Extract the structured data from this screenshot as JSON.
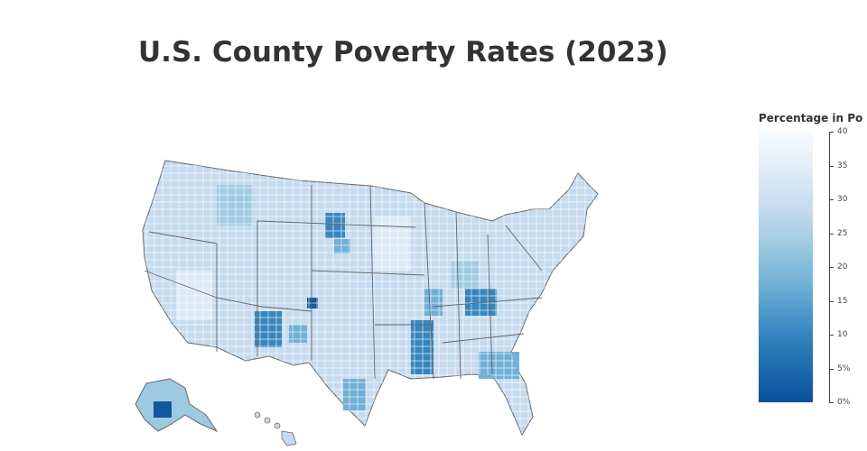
{
  "title": "U.S. County Poverty Rates (2023)",
  "colorbar": {
    "title": "Percentage in Po",
    "ticks": [
      "40",
      "35",
      "30",
      "25",
      "20",
      "15",
      "10",
      "5%",
      "0%"
    ],
    "colors": [
      "#f7fbff",
      "#deebf7",
      "#c6dbef",
      "#9ecae1",
      "#6baed6",
      "#3182bd",
      "#08519c"
    ]
  },
  "map": {
    "land_color": "#c6dbef",
    "border_color": "#555555"
  }
}
